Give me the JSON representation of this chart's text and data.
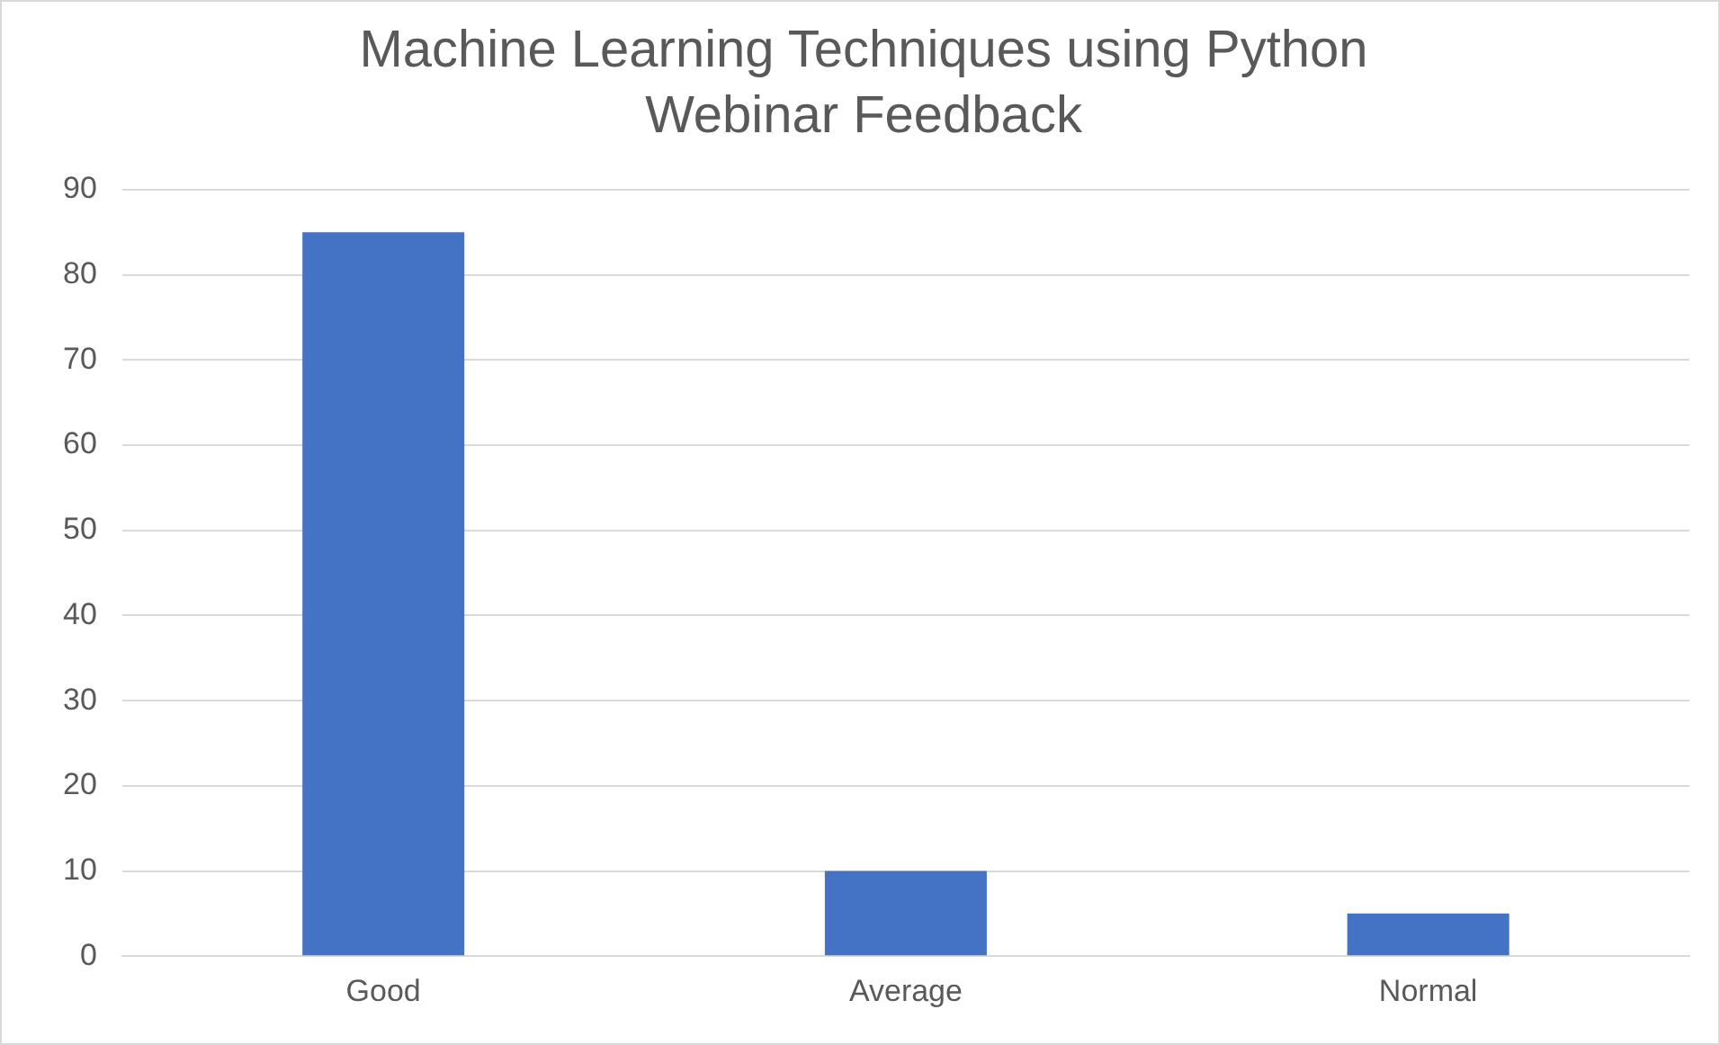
{
  "chart_data": {
    "type": "bar",
    "title": "Machine Learning Techniques using Python\nWebinar Feedback",
    "categories": [
      "Good",
      "Average",
      "Normal"
    ],
    "values": [
      85,
      10,
      5
    ],
    "color": "#4472c4",
    "ylim": [
      0,
      90
    ],
    "yticks": [
      0,
      10,
      20,
      30,
      40,
      50,
      60,
      70,
      80,
      90
    ],
    "grid": "y"
  }
}
